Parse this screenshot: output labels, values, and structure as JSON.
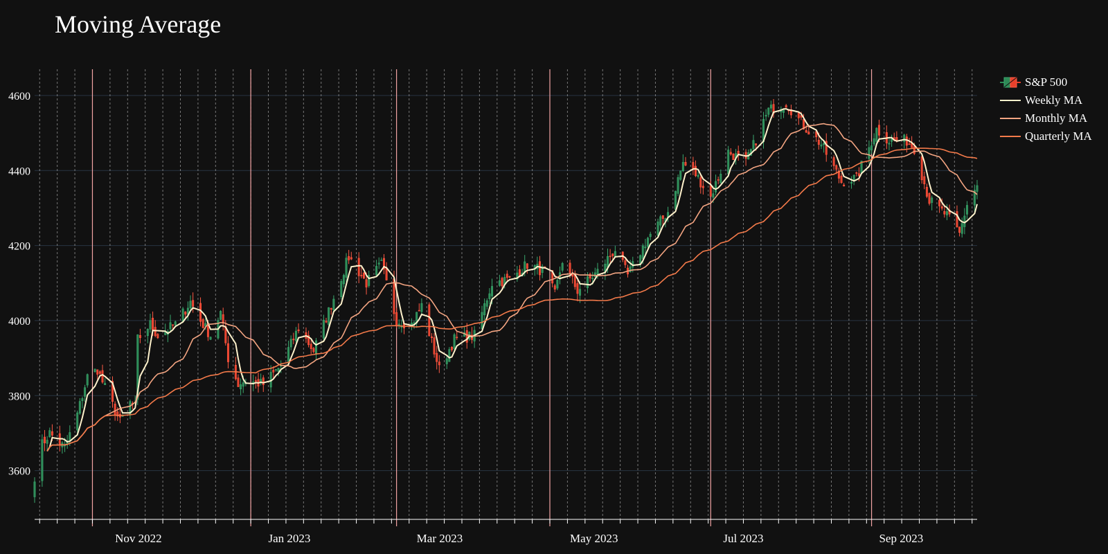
{
  "chart_data": {
    "type": "candlestick",
    "title": "Moving Average",
    "xlabel": "",
    "ylabel": "",
    "x_range": [
      "2022-09-30",
      "2023-10-10"
    ],
    "ylim": [
      3470,
      4670
    ],
    "y_ticks": [
      3600,
      3800,
      4000,
      4200,
      4400,
      4600
    ],
    "x_ticks": [
      {
        "date": "2022-11-01",
        "label": "Nov 2022"
      },
      {
        "date": "2023-01-01",
        "label": "Jan 2023"
      },
      {
        "date": "2023-03-01",
        "label": "Mar 2023"
      },
      {
        "date": "2023-05-01",
        "label": "May 2023"
      },
      {
        "date": "2023-07-01",
        "label": "Jul 2023"
      },
      {
        "date": "2023-09-01",
        "label": "Sep 2023"
      }
    ],
    "month_lines": [
      "2022-10-23",
      "2022-12-25",
      "2023-02-21",
      "2023-04-23",
      "2023-06-26",
      "2023-08-29"
    ],
    "weekly_gridlines": true,
    "legend_position": "top-right",
    "colors": {
      "up": "#2e8b57",
      "down": "#e8412c",
      "weekly_ma": "#fff2cc",
      "monthly_ma": "#f4a582",
      "quarterly_ma": "#f47a4a",
      "month_line": "#f4a5a5",
      "grid": "#283442"
    },
    "series": [
      {
        "name": "S&P 500",
        "kind": "ohlc",
        "key_closes": [
          [
            "2022-09-30",
            3585
          ],
          [
            "2022-10-03",
            3670
          ],
          [
            "2022-10-06",
            3700
          ],
          [
            "2022-10-12",
            3660
          ],
          [
            "2022-10-17",
            3750
          ],
          [
            "2022-10-21",
            3850
          ],
          [
            "2022-10-25",
            3870
          ],
          [
            "2022-10-28",
            3820
          ],
          [
            "2022-11-03",
            3730
          ],
          [
            "2022-11-07",
            3780
          ],
          [
            "2022-11-09",
            3770
          ],
          [
            "2022-11-10",
            3950
          ],
          [
            "2022-11-15",
            3990
          ],
          [
            "2022-11-18",
            3960
          ],
          [
            "2022-11-25",
            3990
          ],
          [
            "2022-12-01",
            4050
          ],
          [
            "2022-12-05",
            4000
          ],
          [
            "2022-12-09",
            3960
          ],
          [
            "2022-12-13",
            4020
          ],
          [
            "2022-12-16",
            3900
          ],
          [
            "2022-12-20",
            3830
          ],
          [
            "2022-12-23",
            3840
          ],
          [
            "2022-12-30",
            3830
          ],
          [
            "2023-01-06",
            3880
          ],
          [
            "2023-01-13",
            3980
          ],
          [
            "2023-01-19",
            3920
          ],
          [
            "2023-01-27",
            4060
          ],
          [
            "2023-02-02",
            4170
          ],
          [
            "2023-02-09",
            4100
          ],
          [
            "2023-02-15",
            4150
          ],
          [
            "2023-02-21",
            4000
          ],
          [
            "2023-02-27",
            3990
          ],
          [
            "2023-03-03",
            4040
          ],
          [
            "2023-03-10",
            3870
          ],
          [
            "2023-03-16",
            3950
          ],
          [
            "2023-03-24",
            3960
          ],
          [
            "2023-03-31",
            4100
          ],
          [
            "2023-04-07",
            4110
          ],
          [
            "2023-04-14",
            4150
          ],
          [
            "2023-04-21",
            4130
          ],
          [
            "2023-04-25",
            4070
          ],
          [
            "2023-04-28",
            4160
          ],
          [
            "2023-05-04",
            4080
          ],
          [
            "2023-05-12",
            4130
          ],
          [
            "2023-05-19",
            4190
          ],
          [
            "2023-05-24",
            4120
          ],
          [
            "2023-06-01",
            4220
          ],
          [
            "2023-06-09",
            4290
          ],
          [
            "2023-06-15",
            4420
          ],
          [
            "2023-06-20",
            4390
          ],
          [
            "2023-06-26",
            4330
          ],
          [
            "2023-07-03",
            4450
          ],
          [
            "2023-07-10",
            4420
          ],
          [
            "2023-07-19",
            4560
          ],
          [
            "2023-07-26",
            4580
          ],
          [
            "2023-08-02",
            4520
          ],
          [
            "2023-08-09",
            4470
          ],
          [
            "2023-08-17",
            4370
          ],
          [
            "2023-08-23",
            4380
          ],
          [
            "2023-08-31",
            4510
          ],
          [
            "2023-09-05",
            4480
          ],
          [
            "2023-09-12",
            4480
          ],
          [
            "2023-09-15",
            4460
          ],
          [
            "2023-09-21",
            4320
          ],
          [
            "2023-09-28",
            4280
          ],
          [
            "2023-10-03",
            4230
          ],
          [
            "2023-10-06",
            4310
          ],
          [
            "2023-10-10",
            4360
          ]
        ]
      },
      {
        "name": "Weekly MA",
        "kind": "line",
        "window_days": 5
      },
      {
        "name": "Monthly MA",
        "kind": "line",
        "window_days": 21
      },
      {
        "name": "Quarterly MA",
        "kind": "line",
        "window_days": 63
      }
    ]
  }
}
